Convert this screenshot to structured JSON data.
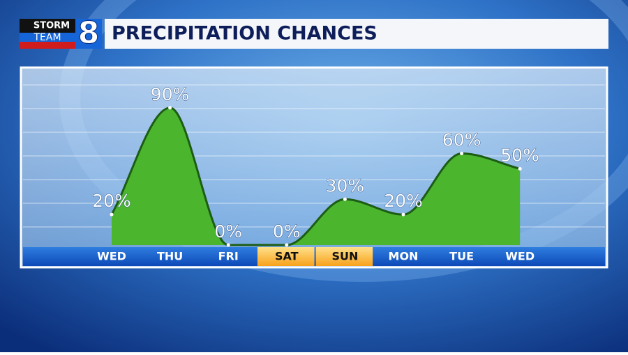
{
  "logo": {
    "line1": "STORM",
    "line2": "TEAM",
    "number": "8"
  },
  "chart_data": {
    "type": "area",
    "title": "PRECIPITATION CHANCES",
    "categories": [
      "WED",
      "THU",
      "FRI",
      "SAT",
      "SUN",
      "MON",
      "TUE",
      "WED"
    ],
    "values": [
      20,
      90,
      0,
      0,
      30,
      20,
      60,
      50
    ],
    "value_labels": [
      "20%",
      "90%",
      "0%",
      "0%",
      "30%",
      "20%",
      "60%",
      "50%"
    ],
    "color": "#4bb52e",
    "line_color": "#1d5c14",
    "highlight_categories": [
      3,
      4
    ],
    "ylim": [
      0,
      110
    ],
    "grid": true
  }
}
